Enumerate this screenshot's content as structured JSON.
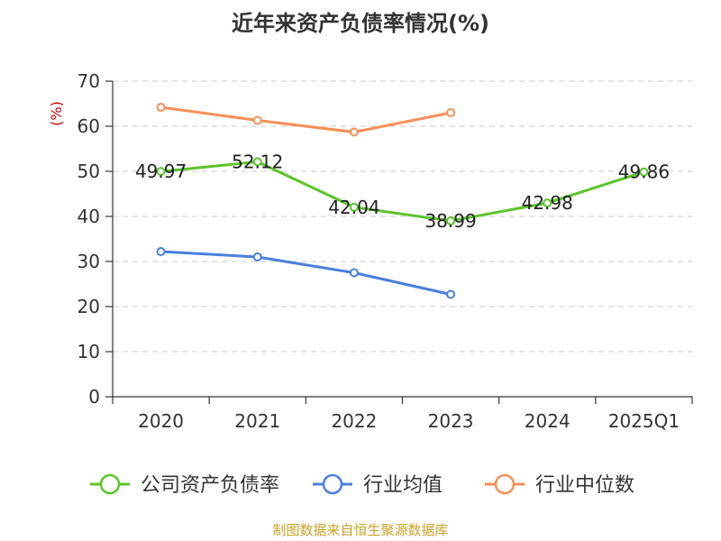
{
  "chart_data": {
    "type": "line",
    "title": "近年来资产负债率情况(%)",
    "ylabel": "(%)",
    "xlabel": "",
    "ylim": [
      0,
      70
    ],
    "yticks": [
      0,
      10,
      20,
      30,
      40,
      50,
      60,
      70
    ],
    "grid": true,
    "legend_position": "bottom",
    "categories": [
      "2020",
      "2021",
      "2022",
      "2023",
      "2024",
      "2025Q1"
    ],
    "series": [
      {
        "name": "公司资产负债率",
        "color": "#5cc42a",
        "values": [
          49.97,
          52.12,
          42.04,
          38.99,
          42.98,
          49.86
        ],
        "labels": [
          "49.97",
          "52.12",
          "42.04",
          "38.99",
          "42.98",
          "49.86"
        ]
      },
      {
        "name": "行业均值",
        "color": "#4a7fdb",
        "values": [
          32.2,
          31.0,
          27.5,
          22.7,
          null,
          null
        ]
      },
      {
        "name": "行业中位数",
        "color": "#f78f56",
        "values": [
          64.2,
          61.3,
          58.7,
          63.0,
          null,
          null
        ]
      }
    ]
  },
  "footer": {
    "source": "制图数据来自恒生聚源数据库"
  }
}
